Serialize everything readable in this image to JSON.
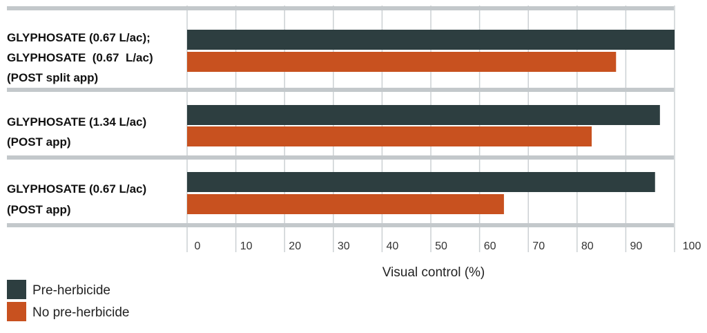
{
  "chart_data": {
    "type": "bar",
    "orientation": "horizontal",
    "categories": [
      [
        "GLYPHOSATE (0.67 L/ac);",
        "GLYPHOSATE  (0.67  L/ac)",
        "(POST split app)"
      ],
      [
        "GLYPHOSATE (1.34 L/ac)",
        "(POST app)"
      ],
      [
        "GLYPHOSATE (0.67 L/ac)",
        "(POST app)"
      ]
    ],
    "series": [
      {
        "name": "Pre-herbicide",
        "color": "#2d3e40",
        "values": [
          100,
          97,
          96
        ]
      },
      {
        "name": "No pre-herbicide",
        "color": "#c8511f",
        "values": [
          88,
          83,
          65
        ]
      }
    ],
    "xlabel": "Visual control (%)",
    "ylabel": "",
    "xlim": [
      0,
      100
    ],
    "x_ticks": [
      0,
      10,
      20,
      30,
      40,
      50,
      60,
      70,
      80,
      90,
      100
    ],
    "grid": true,
    "legend_position": "bottom-left",
    "colors": {
      "grid": "#cbd0d3",
      "separator": "#c3c8cb"
    }
  }
}
